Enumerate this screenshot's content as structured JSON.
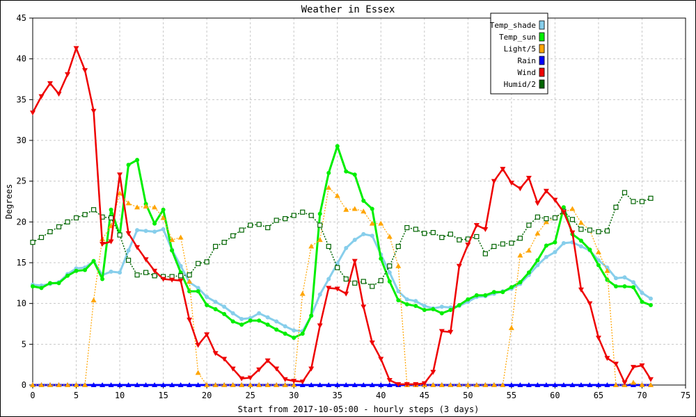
{
  "chart_data": {
    "type": "line",
    "title": "Weather in Essex",
    "xlabel": "Start from 2017-10-05:00 - hourly steps (3 days)",
    "ylabel": "Degrees",
    "xlim": [
      0,
      75
    ],
    "ylim": [
      0,
      45
    ],
    "xticks": [
      0,
      5,
      10,
      15,
      20,
      25,
      30,
      35,
      40,
      45,
      50,
      55,
      60,
      65,
      70,
      75
    ],
    "yticks": [
      0,
      5,
      10,
      15,
      20,
      25,
      30,
      35,
      40,
      45
    ],
    "grid": true,
    "legend_position": "top-right",
    "series": [
      {
        "name": "Temp_shade",
        "color": "#87ceeb",
        "values": [
          12.3,
          12.2,
          12.4,
          12.6,
          13.6,
          14.3,
          14.4,
          15.2,
          13.5,
          13.9,
          13.8,
          16.5,
          19.0,
          18.9,
          18.8,
          19.1,
          16.6,
          14.6,
          12.6,
          11.9,
          10.8,
          10.2,
          9.6,
          8.8,
          8.1,
          8.2,
          8.8,
          8.3,
          7.8,
          7.2,
          6.7,
          6.6,
          8.5,
          11.1,
          13.0,
          14.9,
          16.8,
          17.8,
          18.5,
          18.3,
          16.0,
          13.8,
          11.5,
          10.5,
          10.3,
          9.7,
          9.4,
          9.6,
          9.5,
          9.7,
          10.2,
          10.8,
          10.9,
          11.2,
          11.5,
          11.8,
          12.4,
          13.5,
          14.7,
          15.7,
          16.3,
          17.4,
          17.5,
          17.0,
          16.5,
          15.3,
          14.4,
          13.1,
          13.2,
          12.6,
          11.3,
          10.6
        ]
      },
      {
        "name": "Temp_sun",
        "color": "#00ee00",
        "values": [
          12.1,
          11.9,
          12.5,
          12.5,
          13.4,
          14.0,
          14.1,
          15.2,
          13.0,
          21.5,
          18.4,
          27.0,
          27.6,
          22.2,
          19.8,
          21.5,
          16.5,
          13.8,
          11.5,
          11.5,
          9.8,
          9.3,
          8.7,
          7.8,
          7.4,
          7.9,
          7.9,
          7.4,
          6.8,
          6.3,
          5.8,
          6.3,
          8.5,
          21.0,
          26.0,
          29.3,
          26.2,
          25.8,
          22.6,
          21.6,
          15.5,
          12.7,
          10.4,
          9.9,
          9.7,
          9.2,
          9.3,
          8.8,
          9.2,
          9.8,
          10.5,
          11.0,
          11.0,
          11.4,
          11.4,
          12.0,
          12.6,
          13.8,
          15.3,
          17.1,
          17.5,
          21.8,
          18.5,
          17.7,
          16.6,
          14.7,
          12.9,
          12.1,
          12.1,
          12.0,
          10.2,
          9.8
        ]
      },
      {
        "name": "Light/5",
        "color": "#ffa500",
        "values": [
          0,
          0,
          0,
          0,
          0,
          0,
          0,
          10.4,
          17.9,
          19.5,
          23.5,
          22.3,
          21.8,
          21.9,
          21.8,
          20.5,
          17.8,
          18.1,
          12.7,
          1.5,
          0,
          0,
          0,
          0,
          0,
          0,
          0,
          0,
          0,
          0,
          0,
          11.2,
          17.0,
          17.8,
          24.2,
          23.2,
          21.5,
          21.6,
          21.3,
          19.8,
          19.8,
          18.2,
          14.6,
          0,
          0,
          0,
          0,
          0,
          0,
          0,
          0,
          0,
          0,
          0,
          0,
          7.0,
          15.9,
          16.5,
          18.6,
          20.0,
          20.5,
          21.2,
          21.6,
          19.9,
          19.0,
          16.3,
          14.0,
          0,
          0,
          0.3,
          0,
          0
        ]
      },
      {
        "name": "Rain",
        "color": "#0000ff",
        "values": [
          0,
          0,
          0,
          0,
          0,
          0,
          0,
          0,
          0,
          0,
          0,
          0,
          0,
          0,
          0,
          0,
          0,
          0,
          0,
          0,
          0,
          0,
          0,
          0,
          0,
          0,
          0,
          0,
          0,
          0,
          0,
          0,
          0,
          0,
          0,
          0,
          0,
          0,
          0,
          0,
          0,
          0,
          0,
          0,
          0,
          0,
          0,
          0,
          0,
          0,
          0,
          0,
          0,
          0,
          0,
          0,
          0,
          0,
          0,
          0,
          0,
          0,
          0,
          0,
          0,
          0,
          0,
          0,
          0,
          0,
          0,
          0
        ]
      },
      {
        "name": "Wind",
        "color": "#ee0000",
        "values": [
          33.4,
          35.4,
          37.0,
          35.7,
          38.1,
          41.3,
          38.6,
          33.6,
          17.3,
          17.6,
          25.8,
          18.6,
          16.9,
          15.4,
          14.0,
          13.0,
          12.9,
          12.8,
          8.0,
          4.9,
          6.2,
          3.9,
          3.2,
          2.0,
          0.8,
          0.9,
          1.9,
          3.0,
          2.0,
          0.7,
          0.5,
          0.4,
          2.0,
          7.3,
          11.9,
          11.8,
          11.2,
          15.2,
          9.6,
          5.2,
          3.2,
          0.6,
          0.1,
          0.1,
          0.1,
          0.2,
          1.6,
          6.6,
          6.5,
          14.6,
          17.2,
          19.6,
          19.1,
          25.0,
          26.5,
          24.8,
          24.1,
          25.4,
          22.3,
          23.8,
          22.7,
          21.2,
          18.7,
          11.7,
          10.0,
          5.8,
          3.3,
          2.6,
          0.3,
          2.2,
          2.4,
          0.7
        ]
      },
      {
        "name": "Humid/2",
        "color": "#006400",
        "values": [
          17.5,
          18.1,
          18.8,
          19.4,
          20.0,
          20.5,
          20.9,
          21.5,
          20.6,
          20.5,
          18.4,
          15.3,
          13.5,
          13.8,
          13.4,
          13.3,
          13.3,
          13.4,
          13.5,
          14.9,
          15.1,
          17.0,
          17.5,
          18.3,
          19.0,
          19.6,
          19.7,
          19.3,
          20.2,
          20.4,
          20.8,
          21.2,
          20.8,
          19.6,
          17.0,
          14.4,
          13.0,
          12.5,
          12.7,
          12.1,
          12.8,
          14.6,
          17.0,
          19.3,
          19.1,
          18.6,
          18.7,
          18.1,
          18.5,
          17.8,
          17.9,
          18.2,
          16.1,
          17.0,
          17.3,
          17.4,
          18.0,
          19.6,
          20.6,
          20.4,
          20.5,
          21.3,
          20.3,
          19.1,
          19.0,
          18.8,
          18.9,
          21.8,
          23.6,
          22.5,
          22.5,
          22.9
        ]
      }
    ]
  }
}
